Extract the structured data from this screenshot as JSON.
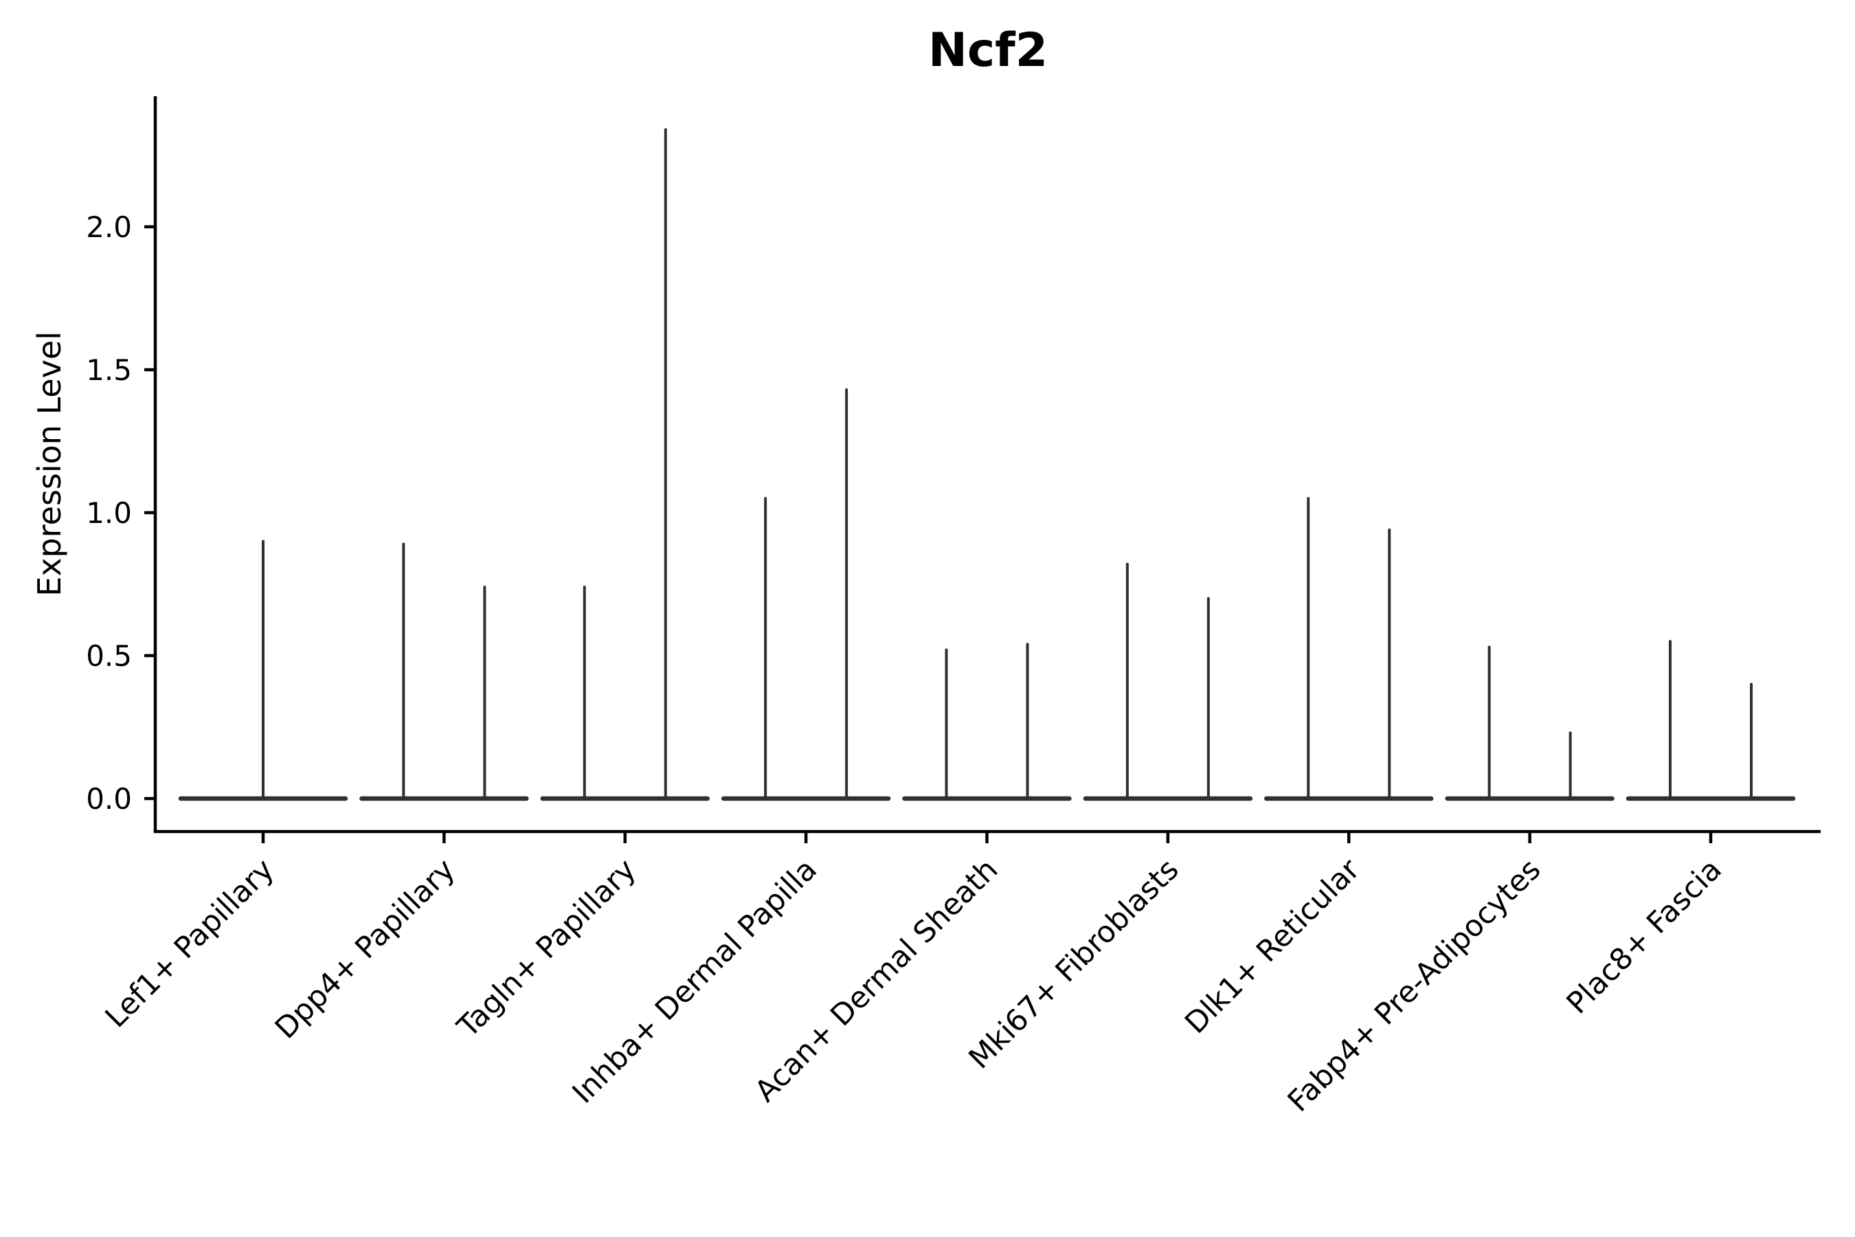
{
  "figure": {
    "title": "Ncf2",
    "background_color": "#ffffff"
  },
  "chart_data": {
    "type": "violin",
    "title": "Ncf2",
    "xlabel": "",
    "ylabel": "Expression Level",
    "categories": [
      "Lef1+ Papillary",
      "Dpp4+ Papillary",
      "Tagln+ Papillary",
      "Inhba+ Dermal Papilla",
      "Acan+ Dermal Sheath",
      "Mki67+ Fibroblasts",
      "Dlk1+ Reticular",
      "Fabp4+ Pre-Adipocytes",
      "Plac8+ Fascia"
    ],
    "groups": [
      {
        "category": "Lef1+ Papillary",
        "violin_max": [
          0.9
        ]
      },
      {
        "category": "Dpp4+ Papillary",
        "violin_max": [
          0.89,
          0.74
        ]
      },
      {
        "category": "Tagln+ Papillary",
        "violin_max": [
          0.74,
          2.34
        ]
      },
      {
        "category": "Inhba+ Dermal Papilla",
        "violin_max": [
          1.05,
          1.43
        ]
      },
      {
        "category": "Acan+ Dermal Sheath",
        "violin_max": [
          0.52,
          0.54
        ]
      },
      {
        "category": "Mki67+ Fibroblasts",
        "violin_max": [
          0.82,
          0.7
        ]
      },
      {
        "category": "Dlk1+ Reticular",
        "violin_max": [
          1.05,
          0.94
        ]
      },
      {
        "category": "Fabp4+ Pre-Adipocytes",
        "violin_max": [
          0.53,
          0.23
        ]
      },
      {
        "category": "Plac8+ Fascia",
        "violin_max": [
          0.55,
          0.4
        ]
      }
    ],
    "baseline_value": 0.0,
    "yticks": {
      "values": [
        0.0,
        0.5,
        1.0,
        1.5,
        2.0
      ],
      "labels": [
        "0.0",
        "0.5",
        "1.0",
        "1.5",
        "2.0"
      ]
    },
    "ylim": [
      -0.12,
      2.46
    ],
    "x_tick_rotation_deg": 45,
    "grid": false,
    "legend": null,
    "colors": {
      "violin": "#303030",
      "axis": "#000000",
      "text": "#000000",
      "background": "#ffffff"
    }
  }
}
